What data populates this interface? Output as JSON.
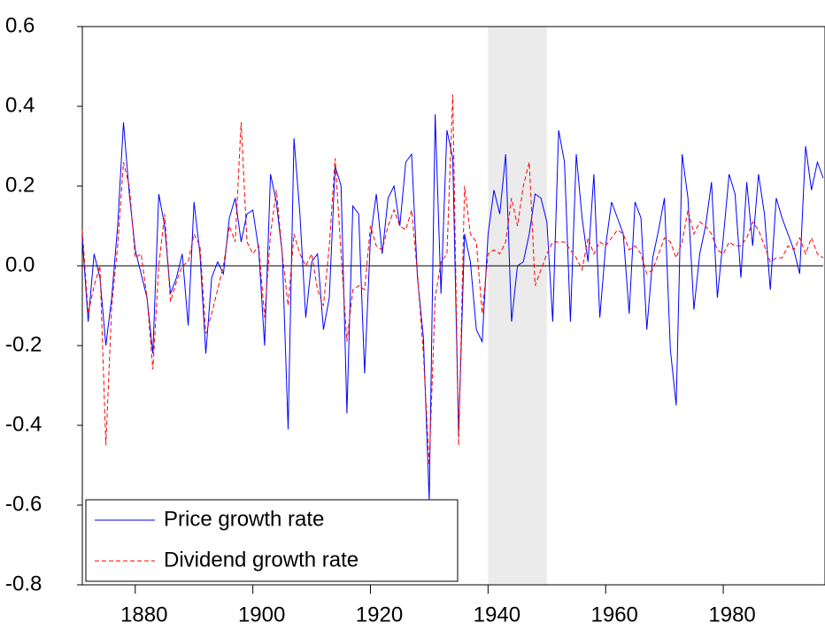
{
  "chart_data": {
    "type": "line",
    "x": [
      1871,
      1872,
      1873,
      1874,
      1875,
      1876,
      1877,
      1878,
      1879,
      1880,
      1881,
      1882,
      1883,
      1884,
      1885,
      1886,
      1887,
      1888,
      1889,
      1890,
      1891,
      1892,
      1893,
      1894,
      1895,
      1896,
      1897,
      1898,
      1899,
      1900,
      1901,
      1902,
      1903,
      1904,
      1905,
      1906,
      1907,
      1908,
      1909,
      1910,
      1911,
      1912,
      1913,
      1914,
      1915,
      1916,
      1917,
      1918,
      1919,
      1920,
      1921,
      1922,
      1923,
      1924,
      1925,
      1926,
      1927,
      1928,
      1929,
      1930,
      1931,
      1932,
      1933,
      1934,
      1935,
      1936,
      1937,
      1938,
      1939,
      1940,
      1941,
      1942,
      1943,
      1944,
      1945,
      1946,
      1947,
      1948,
      1949,
      1950,
      1951,
      1952,
      1953,
      1954,
      1955,
      1956,
      1957,
      1958,
      1959,
      1960,
      1961,
      1962,
      1963,
      1964,
      1965,
      1966,
      1967,
      1968,
      1969,
      1970,
      1971,
      1972,
      1973,
      1974,
      1975,
      1976,
      1977,
      1978,
      1979,
      1980,
      1981,
      1982,
      1983,
      1984,
      1985,
      1986,
      1987,
      1988,
      1989,
      1990,
      1991,
      1992,
      1993,
      1994,
      1995,
      1996,
      1997
    ],
    "series": [
      {
        "name": "Price growth rate",
        "color": "#0000ff",
        "dash": "solid",
        "values": [
          0.07,
          -0.14,
          0.03,
          -0.03,
          -0.2,
          -0.08,
          0.1,
          0.36,
          0.18,
          0.04,
          -0.02,
          -0.08,
          -0.22,
          0.18,
          0.1,
          -0.07,
          -0.03,
          0.03,
          -0.15,
          0.16,
          0.03,
          -0.22,
          -0.03,
          0.01,
          -0.02,
          0.12,
          0.17,
          0.06,
          0.13,
          0.14,
          0.04,
          -0.2,
          0.23,
          0.16,
          0.03,
          -0.41,
          0.32,
          0.13,
          -0.13,
          0.01,
          0.03,
          -0.16,
          -0.08,
          0.25,
          0.2,
          -0.37,
          0.15,
          0.13,
          -0.27,
          0.07,
          0.18,
          0.03,
          0.17,
          0.2,
          0.1,
          0.26,
          0.28,
          -0.03,
          -0.18,
          -0.59,
          0.38,
          -0.07,
          0.34,
          0.27,
          -0.42,
          0.08,
          0.01,
          -0.16,
          -0.19,
          0.08,
          0.19,
          0.13,
          0.28,
          -0.14,
          0.0,
          0.01,
          0.08,
          0.18,
          0.17,
          0.11,
          -0.14,
          0.34,
          0.26,
          -0.14,
          0.28,
          0.12,
          0.01,
          0.23,
          -0.13,
          0.05,
          0.16,
          0.12,
          0.08,
          -0.12,
          0.16,
          0.12,
          -0.16,
          0.02,
          0.09,
          0.17,
          -0.21,
          -0.35,
          0.28,
          0.17,
          -0.11,
          0.03,
          0.1,
          0.21,
          -0.08,
          0.07,
          0.23,
          0.18,
          -0.03,
          0.21,
          0.05,
          0.23,
          0.13,
          -0.06,
          0.17,
          0.12,
          0.08,
          0.04,
          -0.02,
          0.3,
          0.19,
          0.26,
          0.22
        ]
      },
      {
        "name": "Dividend growth rate",
        "color": "#ff0000",
        "dash": "dashed",
        "values": [
          0.09,
          -0.12,
          -0.05,
          0.0,
          -0.45,
          -0.1,
          0.05,
          0.26,
          0.2,
          0.02,
          0.03,
          -0.08,
          -0.26,
          0.0,
          0.13,
          -0.09,
          -0.04,
          0.0,
          0.01,
          0.08,
          0.05,
          -0.17,
          -0.12,
          -0.06,
          0.0,
          0.1,
          0.06,
          0.36,
          0.06,
          0.03,
          0.05,
          -0.13,
          0.08,
          0.19,
          0.03,
          -0.1,
          0.08,
          0.03,
          0.0,
          0.03,
          -0.06,
          -0.1,
          0.05,
          0.27,
          0.03,
          -0.19,
          -0.06,
          -0.05,
          -0.06,
          0.1,
          0.05,
          0.04,
          0.1,
          0.14,
          0.1,
          0.09,
          0.14,
          -0.02,
          -0.22,
          -0.5,
          -0.08,
          0.01,
          0.03,
          0.43,
          -0.45,
          0.2,
          0.08,
          0.06,
          -0.12,
          0.03,
          0.04,
          0.03,
          0.06,
          0.17,
          0.1,
          0.2,
          0.26,
          -0.05,
          -0.01,
          0.03,
          0.06,
          0.06,
          0.06,
          0.04,
          0.02,
          -0.01,
          0.07,
          0.03,
          0.06,
          0.05,
          0.07,
          0.09,
          0.08,
          0.04,
          0.05,
          0.03,
          -0.02,
          -0.01,
          0.03,
          0.07,
          0.06,
          0.02,
          0.06,
          0.14,
          0.08,
          0.11,
          0.1,
          0.08,
          0.04,
          0.03,
          0.06,
          0.05,
          0.05,
          0.07,
          0.11,
          0.09,
          0.05,
          0.01,
          0.02,
          0.02,
          0.05,
          0.04,
          0.07,
          0.03,
          0.07,
          0.03,
          0.02
        ]
      }
    ],
    "xlim": [
      1871,
      1997
    ],
    "xticks": [
      1880,
      1900,
      1920,
      1940,
      1960,
      1980
    ],
    "ylim": [
      -0.8,
      0.6
    ],
    "yticks": [
      {
        "value": 0.6,
        "label": "0.6"
      },
      {
        "value": 0.4,
        "label": "0.4"
      },
      {
        "value": 0.2,
        "label": "0.2"
      },
      {
        "value": 0,
        "label": "0.0"
      },
      {
        "value": -0.2,
        "label": "-0.2"
      },
      {
        "value": -0.4,
        "label": "-0.4"
      },
      {
        "value": -0.6,
        "label": "-0.6"
      },
      {
        "value": -0.8,
        "label": "-0.8"
      }
    ],
    "shaded_range": [
      1940,
      1950
    ],
    "shade_color": "#ebebeb",
    "zero_line": true,
    "legend": "lower-left"
  }
}
